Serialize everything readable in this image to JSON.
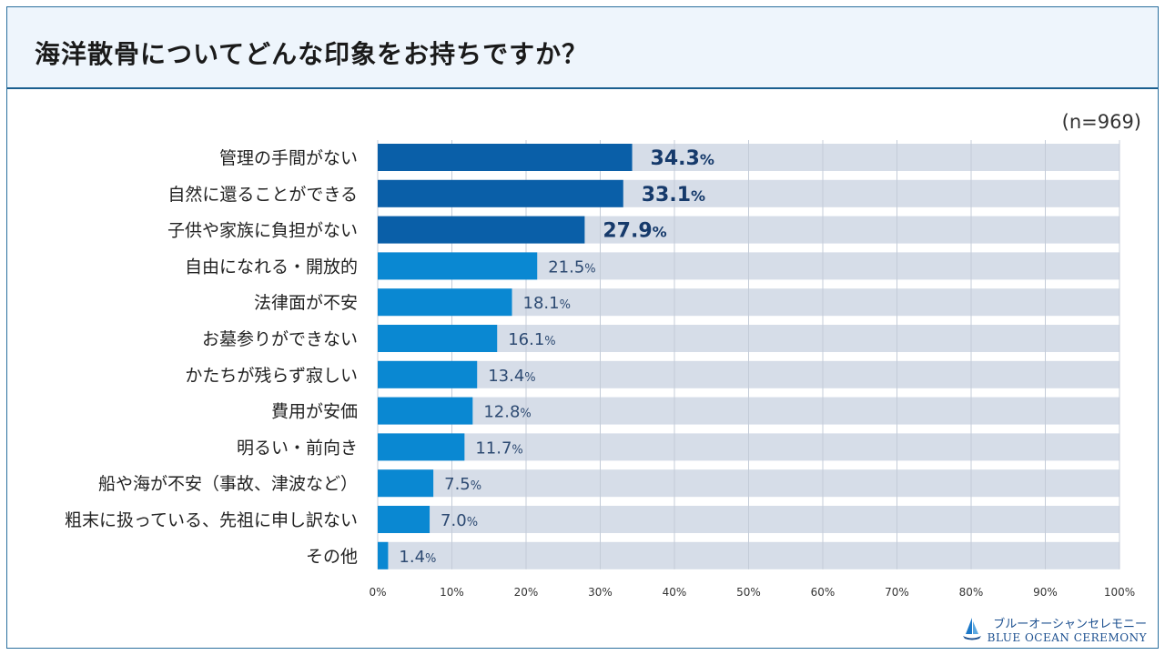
{
  "title": "海洋散骨についてどんな印象をお持ちですか？",
  "sample_note": "(n=969)",
  "logo": {
    "jp": "ブルーオーシャンセレモニー",
    "en": "BLUE OCEAN CEREMONY"
  },
  "colors": {
    "top3": "#0a5fa8",
    "other": "#0a88d2",
    "track": "#d6dde8",
    "top3_label": "#163a6b",
    "other_label": "#2d4a72"
  },
  "chart_data": {
    "type": "bar",
    "orientation": "horizontal",
    "categories": [
      "管理の手間がない",
      "自然に還ることができる",
      "子供や家族に負担がない",
      "自由になれる・開放的",
      "法律面が不安",
      "お墓参りができない",
      "かたちが残らず寂しい",
      "費用が安価",
      "明るい・前向き",
      "船や海が不安（事故、津波など）",
      "粗末に扱っている、先祖に申し訳ない",
      "その他"
    ],
    "values": [
      34.3,
      33.1,
      27.9,
      21.5,
      18.1,
      16.1,
      13.4,
      12.8,
      11.7,
      7.5,
      7.0,
      1.4
    ],
    "value_labels": [
      "34.3",
      "33.1",
      "27.9",
      "21.5",
      "18.1",
      "16.1",
      "13.4",
      "12.8",
      "11.7",
      "7.5",
      "7.0",
      "1.4"
    ],
    "unit": "%",
    "xlim": [
      0,
      100
    ],
    "xticks": [
      "0%",
      "10%",
      "20%",
      "30%",
      "40%",
      "50%",
      "60%",
      "70%",
      "80%",
      "90%",
      "100%"
    ],
    "highlight_top": 3,
    "grid": true
  }
}
